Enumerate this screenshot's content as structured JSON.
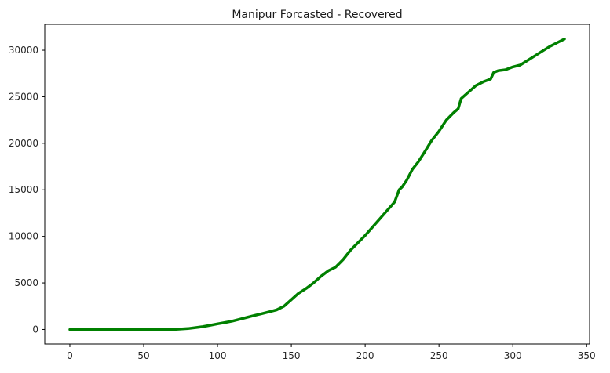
{
  "chart_data": {
    "type": "line",
    "title": "Manipur Forcasted - Recovered",
    "xlabel": "",
    "ylabel": "",
    "xlim": [
      -17,
      352
    ],
    "ylim": [
      -1560,
      32780
    ],
    "x_ticks": [
      0,
      50,
      100,
      150,
      200,
      250,
      300,
      350
    ],
    "y_ticks": [
      0,
      5000,
      10000,
      15000,
      20000,
      25000,
      30000
    ],
    "grid": false,
    "legend": "none",
    "series": [
      {
        "color": "#008000",
        "points": [
          [
            0,
            0
          ],
          [
            10,
            0
          ],
          [
            20,
            0
          ],
          [
            30,
            0
          ],
          [
            40,
            0
          ],
          [
            50,
            0
          ],
          [
            60,
            0
          ],
          [
            70,
            0
          ],
          [
            75,
            50
          ],
          [
            80,
            100
          ],
          [
            85,
            200
          ],
          [
            90,
            300
          ],
          [
            95,
            450
          ],
          [
            100,
            600
          ],
          [
            105,
            750
          ],
          [
            110,
            900
          ],
          [
            115,
            1100
          ],
          [
            120,
            1300
          ],
          [
            125,
            1500
          ],
          [
            130,
            1700
          ],
          [
            135,
            1900
          ],
          [
            140,
            2100
          ],
          [
            145,
            2500
          ],
          [
            150,
            3200
          ],
          [
            155,
            3900
          ],
          [
            160,
            4400
          ],
          [
            165,
            5000
          ],
          [
            170,
            5700
          ],
          [
            175,
            6300
          ],
          [
            180,
            6700
          ],
          [
            185,
            7500
          ],
          [
            190,
            8500
          ],
          [
            195,
            9300
          ],
          [
            200,
            10100
          ],
          [
            205,
            11000
          ],
          [
            210,
            11900
          ],
          [
            215,
            12800
          ],
          [
            220,
            13700
          ],
          [
            223,
            15000
          ],
          [
            225,
            15300
          ],
          [
            228,
            16000
          ],
          [
            232,
            17200
          ],
          [
            236,
            18000
          ],
          [
            240,
            19000
          ],
          [
            245,
            20300
          ],
          [
            250,
            21300
          ],
          [
            255,
            22500
          ],
          [
            260,
            23300
          ],
          [
            263,
            23700
          ],
          [
            265,
            24800
          ],
          [
            270,
            25500
          ],
          [
            275,
            26200
          ],
          [
            280,
            26600
          ],
          [
            285,
            26900
          ],
          [
            287,
            27600
          ],
          [
            290,
            27800
          ],
          [
            295,
            27900
          ],
          [
            300,
            28200
          ],
          [
            305,
            28400
          ],
          [
            310,
            28900
          ],
          [
            315,
            29400
          ],
          [
            320,
            29900
          ],
          [
            325,
            30400
          ],
          [
            330,
            30800
          ],
          [
            335,
            31200
          ]
        ]
      }
    ]
  }
}
